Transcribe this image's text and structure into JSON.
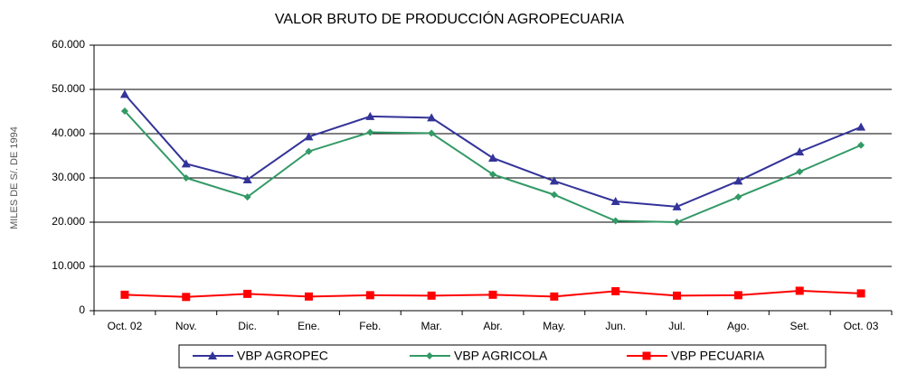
{
  "chart_data": {
    "type": "line",
    "title": "VALOR BRUTO DE PRODUCCIÓN AGROPECUARIA",
    "y_label": "MILES DE S/. DE 1994",
    "categories": [
      "Oct. 02",
      "Nov.",
      "Dic.",
      "Ene.",
      "Feb.",
      "Mar.",
      "Abr.",
      "May.",
      "Jun.",
      "Jul.",
      "Ago.",
      "Set.",
      "Oct. 03"
    ],
    "series": [
      {
        "name": "VBP AGROPEC",
        "color": "#333399",
        "marker": "triangle",
        "values": [
          48900,
          33200,
          29600,
          39300,
          43900,
          43600,
          34500,
          29300,
          24700,
          23500,
          29300,
          35900,
          41500
        ]
      },
      {
        "name": "VBP AGRICOLA",
        "color": "#339966",
        "marker": "diamond",
        "values": [
          45100,
          30000,
          25700,
          36000,
          40300,
          40100,
          30800,
          26200,
          20300,
          20000,
          25700,
          31400,
          37400
        ]
      },
      {
        "name": "VBP PECUARIA",
        "color": "#ff0000",
        "marker": "square",
        "values": [
          3600,
          3100,
          3800,
          3200,
          3500,
          3400,
          3600,
          3200,
          4400,
          3400,
          3500,
          4500,
          3900
        ]
      }
    ],
    "ylim": [
      0,
      60000
    ],
    "yticks": [
      0,
      {
        "value": 10000,
        "label": "10.000"
      },
      {
        "value": 20000,
        "label": "20.000"
      },
      {
        "value": 30000,
        "label": "30.000"
      },
      {
        "value": 40000,
        "label": "40.000"
      },
      {
        "value": 50000,
        "label": "50.000"
      },
      {
        "value": 60000,
        "label": "60.000"
      }
    ],
    "grid": true,
    "legend": "bottom"
  }
}
